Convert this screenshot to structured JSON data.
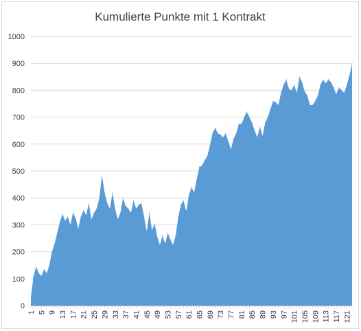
{
  "chart_data": {
    "type": "area",
    "title": "Kumulierte Punkte mit 1 Kontrakt",
    "xlabel": "",
    "ylabel": "",
    "ylim": [
      0,
      1000
    ],
    "yticks": [
      0,
      100,
      200,
      300,
      400,
      500,
      600,
      700,
      800,
      900,
      1000
    ],
    "xlim": [
      1,
      123
    ],
    "xticks": [
      1,
      5,
      9,
      13,
      17,
      21,
      25,
      29,
      33,
      37,
      41,
      45,
      49,
      53,
      57,
      61,
      65,
      69,
      73,
      77,
      81,
      85,
      89,
      93,
      97,
      101,
      105,
      109,
      113,
      117,
      121
    ],
    "grid": true,
    "legend": "none",
    "series_color": "#5b9bd5",
    "x": [
      1,
      2,
      3,
      4,
      5,
      6,
      7,
      8,
      9,
      10,
      11,
      12,
      13,
      14,
      15,
      16,
      17,
      18,
      19,
      20,
      21,
      22,
      23,
      24,
      25,
      26,
      27,
      28,
      29,
      30,
      31,
      32,
      33,
      34,
      35,
      36,
      37,
      38,
      39,
      40,
      41,
      42,
      43,
      44,
      45,
      46,
      47,
      48,
      49,
      50,
      51,
      52,
      53,
      54,
      55,
      56,
      57,
      58,
      59,
      60,
      61,
      62,
      63,
      64,
      65,
      66,
      67,
      68,
      69,
      70,
      71,
      72,
      73,
      74,
      75,
      76,
      77,
      78,
      79,
      80,
      81,
      82,
      83,
      84,
      85,
      86,
      87,
      88,
      89,
      90,
      91,
      92,
      93,
      94,
      95,
      96,
      97,
      98,
      99,
      100,
      101,
      102,
      103,
      104,
      105,
      106,
      107,
      108,
      109,
      110,
      111,
      112,
      113,
      114,
      115,
      116,
      117,
      118,
      119,
      120,
      121,
      122,
      123
    ],
    "values": [
      30,
      110,
      145,
      120,
      110,
      135,
      120,
      150,
      200,
      230,
      270,
      310,
      340,
      315,
      330,
      300,
      345,
      325,
      285,
      330,
      355,
      335,
      380,
      320,
      345,
      360,
      400,
      485,
      420,
      380,
      360,
      420,
      360,
      320,
      345,
      400,
      370,
      360,
      345,
      390,
      360,
      375,
      380,
      330,
      275,
      345,
      280,
      305,
      255,
      225,
      260,
      230,
      270,
      245,
      225,
      260,
      330,
      375,
      390,
      350,
      410,
      440,
      420,
      470,
      515,
      520,
      540,
      555,
      595,
      640,
      660,
      640,
      635,
      625,
      640,
      610,
      580,
      620,
      640,
      675,
      675,
      700,
      720,
      700,
      680,
      650,
      625,
      665,
      630,
      680,
      700,
      730,
      760,
      755,
      745,
      790,
      820,
      840,
      805,
      800,
      820,
      790,
      850,
      830,
      795,
      780,
      745,
      745,
      760,
      780,
      820,
      840,
      825,
      840,
      830,
      810,
      785,
      810,
      800,
      790,
      820,
      855,
      900
    ]
  }
}
